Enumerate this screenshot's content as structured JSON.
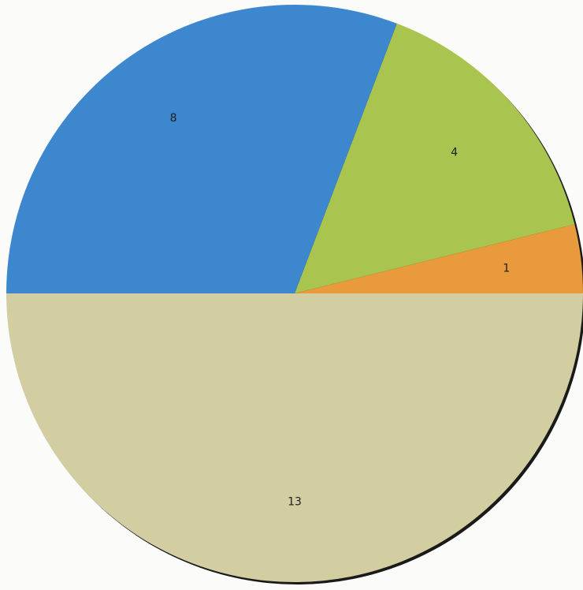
{
  "chart_data": {
    "type": "pie",
    "title": "",
    "slices": [
      {
        "label": "1",
        "value": 1,
        "color": "#e89a3c"
      },
      {
        "label": "4",
        "value": 4,
        "color": "#a9c550"
      },
      {
        "label": "8",
        "value": 8,
        "color": "#3d87cf"
      },
      {
        "label": "13",
        "value": 13,
        "color": "#d3cda2"
      }
    ],
    "start_angle_deg": 0,
    "direction": "counterclockwise",
    "legend": "none"
  }
}
